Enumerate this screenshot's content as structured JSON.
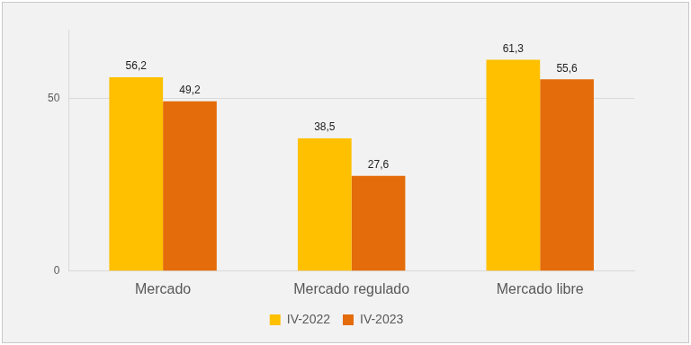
{
  "chart_data": {
    "type": "bar",
    "categories": [
      "Mercado",
      "Mercado regulado",
      "Mercado libre"
    ],
    "series": [
      {
        "name": "IV-2022",
        "color": "#FFC000",
        "values": [
          56.2,
          38.5,
          61.3
        ],
        "value_labels": [
          "56,2",
          "38,5",
          "61,3"
        ]
      },
      {
        "name": "IV-2023",
        "color": "#E46C0A",
        "values": [
          49.2,
          27.6,
          55.6
        ],
        "value_labels": [
          "49,2",
          "27,6",
          "55,6"
        ]
      }
    ],
    "ylim": [
      0,
      70
    ],
    "yticks": [
      0,
      50
    ],
    "grid": true,
    "legend": "bottom",
    "data_labels": true
  }
}
